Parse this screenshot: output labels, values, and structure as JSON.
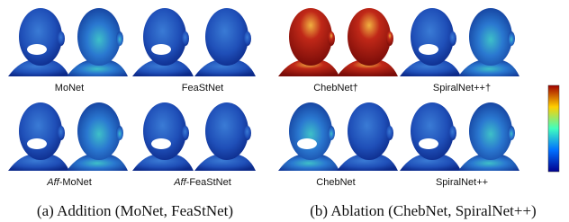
{
  "top_labels": [
    "MoNet",
    "FeaStNet",
    "ChebNet†",
    "SpiralNet++†"
  ],
  "bottom_labels": [
    {
      "prefix": "Aff",
      "name": "-MoNet"
    },
    {
      "prefix": "Aff",
      "name": "-FeaStNet"
    },
    {
      "name": "ChebNet"
    },
    {
      "name": "SpiralNet++"
    }
  ],
  "captions": [
    "(a) Addition (MoNet, FeaStNet)",
    "(b) Ablation (ChebNet, SpiralNet++)"
  ]
}
